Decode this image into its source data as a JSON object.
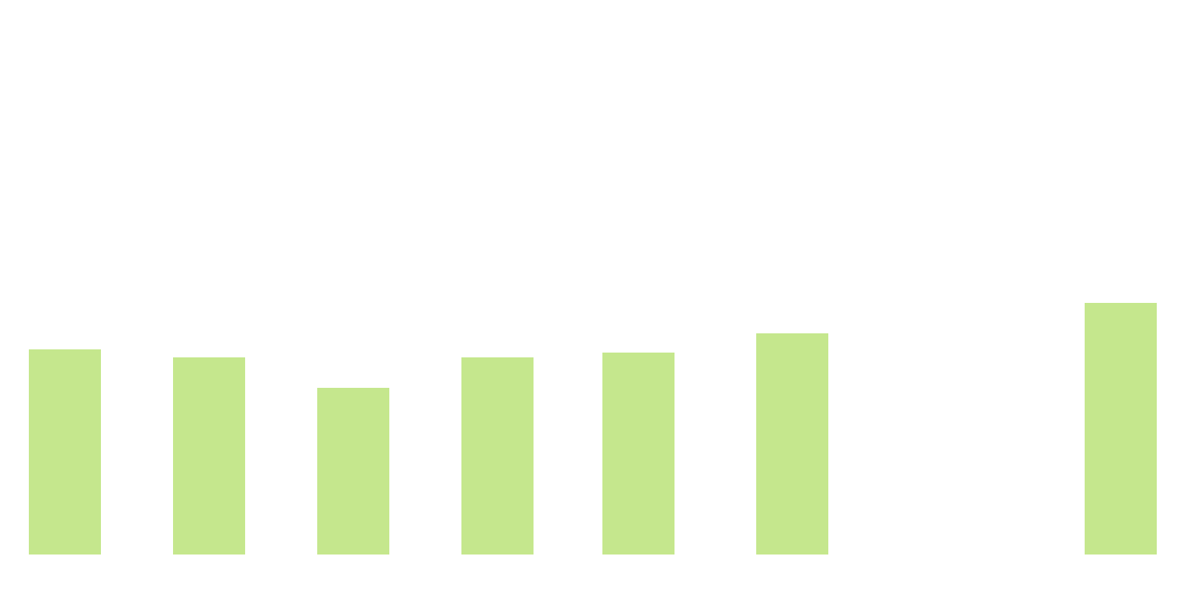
{
  "chart_data": {
    "type": "bar",
    "categories": [
      "",
      "",
      "",
      "",
      "",
      "",
      "",
      ""
    ],
    "values": [
      256,
      246,
      208,
      246,
      252,
      276,
      0,
      314
    ],
    "ylim": [
      0,
      692
    ],
    "grid": false,
    "legend": "none",
    "bar_color": "#c5e78d"
  }
}
